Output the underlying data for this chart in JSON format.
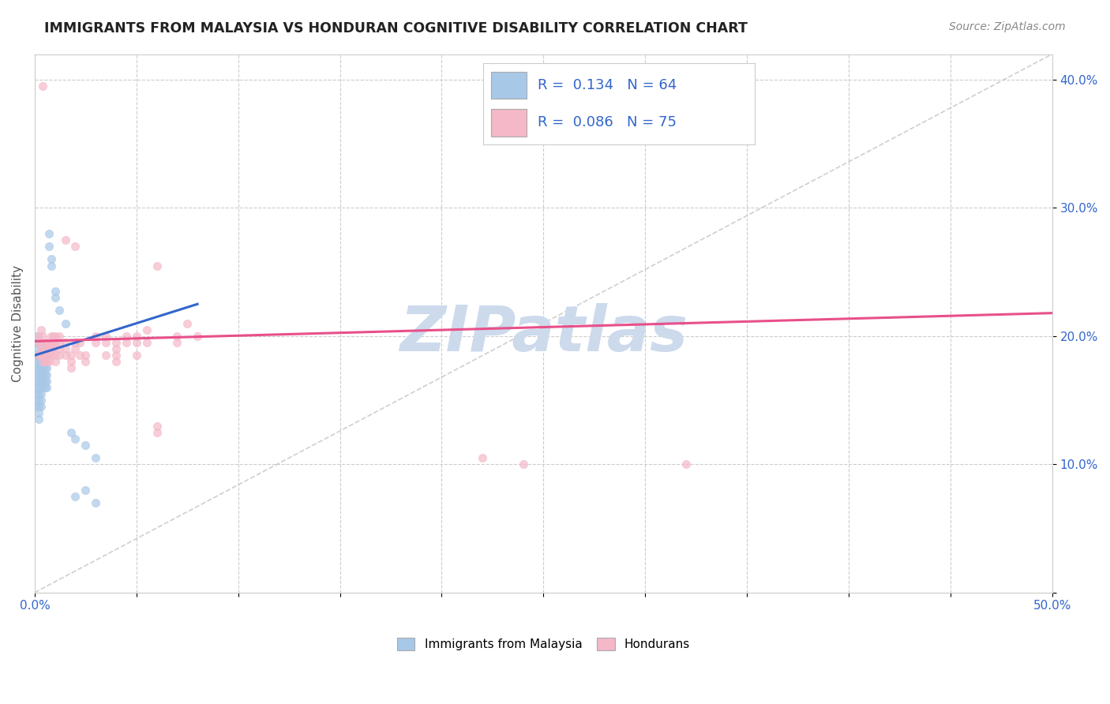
{
  "title": "IMMIGRANTS FROM MALAYSIA VS HONDURAN COGNITIVE DISABILITY CORRELATION CHART",
  "source": "Source: ZipAtlas.com",
  "ylabel": "Cognitive Disability",
  "xlim": [
    0.0,
    0.5
  ],
  "ylim": [
    0.0,
    0.42
  ],
  "xticks": [
    0.0,
    0.05,
    0.1,
    0.15,
    0.2,
    0.25,
    0.3,
    0.35,
    0.4,
    0.45,
    0.5
  ],
  "xticklabels": [
    "0.0%",
    "",
    "",
    "",
    "",
    "",
    "",
    "",
    "",
    "",
    "50.0%"
  ],
  "yticks": [
    0.0,
    0.1,
    0.2,
    0.3,
    0.4
  ],
  "yticklabels": [
    "",
    "10.0%",
    "20.0%",
    "30.0%",
    "40.0%"
  ],
  "color_blue": "#a8c8e8",
  "color_pink": "#f4b8c8",
  "color_blue_line": "#3366cc",
  "color_pink_line": "#e8508a",
  "color_diag": "#bbbbbb",
  "watermark": "ZIPatlas",
  "watermark_color": "#ccdaec",
  "blue_line_x": [
    0.0,
    0.08
  ],
  "blue_line_y": [
    0.185,
    0.225
  ],
  "pink_line_x": [
    0.0,
    0.5
  ],
  "pink_line_y": [
    0.196,
    0.218
  ],
  "blue_scatter": [
    [
      0.001,
      0.19
    ],
    [
      0.001,
      0.185
    ],
    [
      0.001,
      0.18
    ],
    [
      0.001,
      0.175
    ],
    [
      0.001,
      0.17
    ],
    [
      0.001,
      0.165
    ],
    [
      0.001,
      0.16
    ],
    [
      0.001,
      0.155
    ],
    [
      0.001,
      0.15
    ],
    [
      0.001,
      0.145
    ],
    [
      0.001,
      0.195
    ],
    [
      0.001,
      0.2
    ],
    [
      0.002,
      0.185
    ],
    [
      0.002,
      0.18
    ],
    [
      0.002,
      0.175
    ],
    [
      0.002,
      0.17
    ],
    [
      0.002,
      0.165
    ],
    [
      0.002,
      0.16
    ],
    [
      0.002,
      0.155
    ],
    [
      0.002,
      0.15
    ],
    [
      0.002,
      0.145
    ],
    [
      0.002,
      0.14
    ],
    [
      0.002,
      0.135
    ],
    [
      0.002,
      0.195
    ],
    [
      0.003,
      0.19
    ],
    [
      0.003,
      0.185
    ],
    [
      0.003,
      0.18
    ],
    [
      0.003,
      0.175
    ],
    [
      0.003,
      0.17
    ],
    [
      0.003,
      0.165
    ],
    [
      0.003,
      0.16
    ],
    [
      0.003,
      0.155
    ],
    [
      0.003,
      0.15
    ],
    [
      0.003,
      0.145
    ],
    [
      0.004,
      0.19
    ],
    [
      0.004,
      0.185
    ],
    [
      0.004,
      0.18
    ],
    [
      0.004,
      0.175
    ],
    [
      0.004,
      0.17
    ],
    [
      0.004,
      0.165
    ],
    [
      0.005,
      0.185
    ],
    [
      0.005,
      0.18
    ],
    [
      0.005,
      0.175
    ],
    [
      0.005,
      0.17
    ],
    [
      0.005,
      0.165
    ],
    [
      0.005,
      0.16
    ],
    [
      0.006,
      0.175
    ],
    [
      0.006,
      0.17
    ],
    [
      0.006,
      0.165
    ],
    [
      0.006,
      0.16
    ],
    [
      0.007,
      0.28
    ],
    [
      0.007,
      0.27
    ],
    [
      0.008,
      0.26
    ],
    [
      0.008,
      0.255
    ],
    [
      0.01,
      0.235
    ],
    [
      0.01,
      0.23
    ],
    [
      0.012,
      0.22
    ],
    [
      0.015,
      0.21
    ],
    [
      0.018,
      0.125
    ],
    [
      0.02,
      0.12
    ],
    [
      0.025,
      0.115
    ],
    [
      0.03,
      0.105
    ],
    [
      0.02,
      0.075
    ],
    [
      0.025,
      0.08
    ],
    [
      0.03,
      0.07
    ]
  ],
  "pink_scatter": [
    [
      0.002,
      0.2
    ],
    [
      0.002,
      0.195
    ],
    [
      0.002,
      0.185
    ],
    [
      0.003,
      0.205
    ],
    [
      0.003,
      0.195
    ],
    [
      0.003,
      0.19
    ],
    [
      0.003,
      0.185
    ],
    [
      0.004,
      0.2
    ],
    [
      0.004,
      0.19
    ],
    [
      0.004,
      0.185
    ],
    [
      0.004,
      0.18
    ],
    [
      0.005,
      0.195
    ],
    [
      0.005,
      0.19
    ],
    [
      0.005,
      0.185
    ],
    [
      0.005,
      0.18
    ],
    [
      0.006,
      0.195
    ],
    [
      0.006,
      0.19
    ],
    [
      0.006,
      0.185
    ],
    [
      0.006,
      0.18
    ],
    [
      0.007,
      0.195
    ],
    [
      0.007,
      0.19
    ],
    [
      0.007,
      0.185
    ],
    [
      0.007,
      0.18
    ],
    [
      0.008,
      0.2
    ],
    [
      0.008,
      0.195
    ],
    [
      0.008,
      0.19
    ],
    [
      0.008,
      0.185
    ],
    [
      0.009,
      0.2
    ],
    [
      0.009,
      0.195
    ],
    [
      0.009,
      0.19
    ],
    [
      0.01,
      0.2
    ],
    [
      0.01,
      0.195
    ],
    [
      0.01,
      0.185
    ],
    [
      0.01,
      0.18
    ],
    [
      0.012,
      0.2
    ],
    [
      0.012,
      0.195
    ],
    [
      0.012,
      0.19
    ],
    [
      0.012,
      0.185
    ],
    [
      0.015,
      0.195
    ],
    [
      0.015,
      0.19
    ],
    [
      0.015,
      0.185
    ],
    [
      0.018,
      0.185
    ],
    [
      0.018,
      0.18
    ],
    [
      0.018,
      0.175
    ],
    [
      0.02,
      0.195
    ],
    [
      0.02,
      0.19
    ],
    [
      0.022,
      0.195
    ],
    [
      0.022,
      0.185
    ],
    [
      0.025,
      0.185
    ],
    [
      0.025,
      0.18
    ],
    [
      0.03,
      0.2
    ],
    [
      0.03,
      0.195
    ],
    [
      0.035,
      0.2
    ],
    [
      0.035,
      0.195
    ],
    [
      0.035,
      0.185
    ],
    [
      0.04,
      0.195
    ],
    [
      0.04,
      0.19
    ],
    [
      0.04,
      0.185
    ],
    [
      0.04,
      0.18
    ],
    [
      0.045,
      0.2
    ],
    [
      0.045,
      0.195
    ],
    [
      0.05,
      0.2
    ],
    [
      0.05,
      0.195
    ],
    [
      0.05,
      0.185
    ],
    [
      0.055,
      0.205
    ],
    [
      0.055,
      0.195
    ],
    [
      0.06,
      0.255
    ],
    [
      0.07,
      0.2
    ],
    [
      0.07,
      0.195
    ],
    [
      0.075,
      0.21
    ],
    [
      0.08,
      0.2
    ],
    [
      0.004,
      0.395
    ],
    [
      0.015,
      0.275
    ],
    [
      0.02,
      0.27
    ],
    [
      0.06,
      0.13
    ],
    [
      0.06,
      0.125
    ],
    [
      0.22,
      0.105
    ],
    [
      0.24,
      0.1
    ],
    [
      0.32,
      0.1
    ]
  ]
}
